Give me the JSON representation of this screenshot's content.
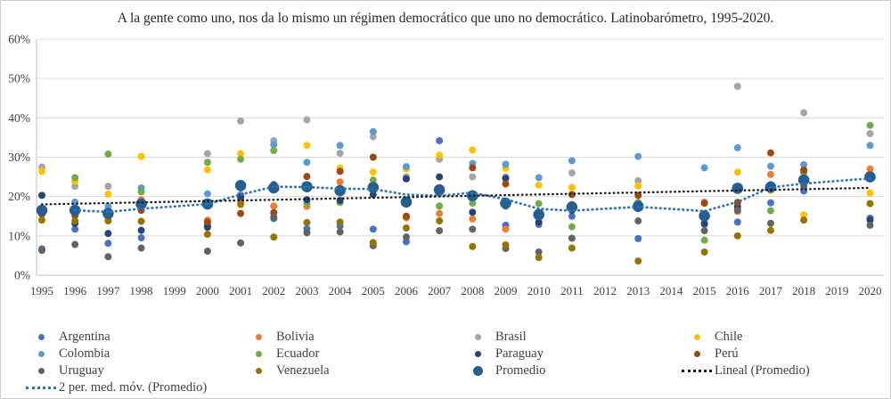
{
  "chart_data": {
    "type": "scatter",
    "title": "A la gente como uno, nos da lo mismo un régimen democrático que uno no democrático. Latinobarómetro, 1995-2020.",
    "x_years": [
      1995,
      1996,
      1997,
      1998,
      1999,
      2000,
      2001,
      2002,
      2003,
      2004,
      2005,
      2006,
      2007,
      2008,
      2009,
      2010,
      2011,
      2012,
      2013,
      2014,
      2015,
      2016,
      2017,
      2018,
      2019,
      2020
    ],
    "ylim": [
      0,
      60
    ],
    "ytick_step": 10,
    "ytick_labels": [
      "0%",
      "10%",
      "20%",
      "30%",
      "40%",
      "50%",
      "60%"
    ],
    "grid": true,
    "legend_position": "bottom",
    "axis_color": "#BFBFBF",
    "grid_color": "#D9D9D9",
    "tick_label_color": "#404040",
    "series": [
      {
        "name": "Argentina",
        "color": "#4472C4",
        "marker_radius": 4,
        "points": {
          "1995": 6.7,
          "1996": 11.7,
          "1997": 8.1,
          "1998": 9.5,
          "2000": 12.6,
          "2001": 19.5,
          "2002": 14.4,
          "2003": 11.8,
          "2004": 12.5,
          "2005": 11.7,
          "2006": 8.5,
          "2007": 34.2,
          "2008": 20.5,
          "2009": 12.7,
          "2010": 12.9,
          "2011": 15.0,
          "2013": 9.3,
          "2015": 12.9,
          "2016": 13.5,
          "2017": 18.4,
          "2018": 21.4,
          "2020": 14.5
        }
      },
      {
        "name": "Bolivia",
        "color": "#ED7D31",
        "marker_radius": 4,
        "points": {
          "1996": 15.7,
          "1997": 14.6,
          "1998": 19.2,
          "2000": 14.0,
          "2001": 18.4,
          "2002": 17.6,
          "2003": 17.5,
          "2004": 23.7,
          "2005": 22.0,
          "2006": 14.6,
          "2007": 15.7,
          "2008": 14.3,
          "2009": 11.7,
          "2010": 15.0,
          "2011": 18.0,
          "2013": 17.5,
          "2015": 15.0,
          "2016": 16.2,
          "2017": 25.6,
          "2018": 26.8,
          "2020": 27.0
        }
      },
      {
        "name": "Brasil",
        "color": "#A5A5A5",
        "marker_radius": 4,
        "points": {
          "1995": 27.5,
          "1996": 22.6,
          "1997": 22.6,
          "1998": 18.5,
          "2000": 30.9,
          "2001": 39.2,
          "2002": 34.2,
          "2003": 39.5,
          "2004": 31.0,
          "2005": 35.2,
          "2006": 25.0,
          "2007": 29.5,
          "2008": 25.0,
          "2009": 25.0,
          "2010": 16.0,
          "2011": 26.0,
          "2013": 24.0,
          "2015": 18.6,
          "2016": 48.0,
          "2017": 22.0,
          "2018": 41.3,
          "2020": 36.0
        }
      },
      {
        "name": "Chile",
        "color": "#FFC000",
        "marker_radius": 4,
        "points": {
          "1995": 26.4,
          "1996": 23.9,
          "1997": 20.6,
          "1998": 30.2,
          "2000": 26.8,
          "2001": 30.9,
          "2002": 22.0,
          "2003": 33.0,
          "2004": 27.2,
          "2005": 26.2,
          "2006": 27.0,
          "2007": 30.5,
          "2008": 31.8,
          "2009": 27.2,
          "2010": 22.9,
          "2011": 22.3,
          "2013": 22.7,
          "2015": 15.5,
          "2016": 26.2,
          "2017": 21.5,
          "2018": 15.3,
          "2020": 20.9
        }
      },
      {
        "name": "Colombia",
        "color": "#5B9BD5",
        "marker_radius": 4,
        "points": {
          "1996": 18.6,
          "1997": 17.5,
          "1998": 22.2,
          "2000": 20.7,
          "2001": 20.5,
          "2002": 33.2,
          "2003": 28.7,
          "2004": 33.0,
          "2005": 36.5,
          "2006": 27.6,
          "2007": 22.0,
          "2008": 28.4,
          "2009": 28.2,
          "2010": 24.8,
          "2011": 29.1,
          "2013": 30.2,
          "2015": 27.3,
          "2016": 32.4,
          "2017": 27.7,
          "2018": 28.1,
          "2020": 33.0
        }
      },
      {
        "name": "Ecuador",
        "color": "#70AD47",
        "marker_radius": 4,
        "points": {
          "1996": 24.8,
          "1997": 30.8,
          "1998": 21.2,
          "2000": 28.7,
          "2001": 29.5,
          "2002": 31.7,
          "2003": 18.3,
          "2004": 18.5,
          "2005": 24.2,
          "2006": 19.0,
          "2007": 17.6,
          "2008": 18.3,
          "2009": 17.5,
          "2010": 18.2,
          "2011": 12.3,
          "2013": 18.5,
          "2015": 8.9,
          "2016": 16.8,
          "2017": 16.4,
          "2018": 26.0,
          "2020": 38.1
        }
      },
      {
        "name": "Paraguay",
        "color": "#264478",
        "marker_radius": 4,
        "points": {
          "1995": 20.3,
          "1996": 13.2,
          "1997": 10.6,
          "1998": 11.4,
          "2000": 12.2,
          "2001": 20.0,
          "2002": 23.0,
          "2003": 19.2,
          "2004": 19.0,
          "2005": 20.5,
          "2006": 24.5,
          "2007": 25.0,
          "2008": 16.0,
          "2009": 24.6,
          "2010": 13.5,
          "2011": 16.5,
          "2013": 18.0,
          "2015": 13.2,
          "2016": 17.5,
          "2017": 23.0,
          "2018": 24.5,
          "2020": 14.0
        }
      },
      {
        "name": "Perú",
        "color": "#9E480E",
        "marker_radius": 4,
        "points": {
          "1995": 15.5,
          "1996": 15.2,
          "1997": 15.0,
          "1998": 16.5,
          "2000": 13.5,
          "2001": 15.7,
          "2002": 15.9,
          "2003": 25.1,
          "2004": 26.4,
          "2005": 30.0,
          "2006": 15.0,
          "2007": 21.0,
          "2008": 27.3,
          "2009": 23.2,
          "2010": 15.5,
          "2011": 20.5,
          "2013": 20.3,
          "2015": 18.3,
          "2016": 18.5,
          "2017": 31.1,
          "2018": 26.7,
          "2020": 25.0
        }
      },
      {
        "name": "Uruguay",
        "color": "#636363",
        "marker_radius": 4,
        "points": {
          "1995": 6.3,
          "1996": 7.8,
          "1997": 4.7,
          "1998": 6.9,
          "2000": 6.1,
          "2001": 8.2,
          "2002": 14.8,
          "2003": 10.8,
          "2004": 11.0,
          "2005": 7.5,
          "2006": 9.7,
          "2007": 11.3,
          "2008": 11.7,
          "2009": 6.8,
          "2010": 5.9,
          "2011": 9.4,
          "2013": 13.8,
          "2015": 11.3,
          "2016": 16.5,
          "2017": 13.2,
          "2018": 22.7,
          "2020": 12.7
        }
      },
      {
        "name": "Venezuela",
        "color": "#997300",
        "marker_radius": 4,
        "points": {
          "1995": 14.0,
          "1996": 13.8,
          "1997": 13.8,
          "1998": 13.7,
          "2000": 10.4,
          "2001": 18.0,
          "2002": 9.7,
          "2003": 13.4,
          "2004": 13.5,
          "2005": 8.3,
          "2006": 12.0,
          "2007": 13.8,
          "2008": 7.3,
          "2009": 7.7,
          "2010": 4.5,
          "2011": 6.9,
          "2013": 3.6,
          "2015": 5.9,
          "2016": 10.0,
          "2017": 11.4,
          "2018": 14.0,
          "2020": 18.2
        }
      },
      {
        "name": "Promedio",
        "color": "#255E91",
        "marker_radius": 6.3,
        "points": {
          "1995": 16.5,
          "1996": 16.5,
          "1997": 15.7,
          "1998": 18.1,
          "2000": 18.1,
          "2001": 22.8,
          "2002": 22.2,
          "2003": 22.5,
          "2004": 21.5,
          "2005": 22.3,
          "2006": 18.6,
          "2007": 21.7,
          "2008": 20.2,
          "2009": 18.3,
          "2010": 15.4,
          "2011": 17.3,
          "2013": 17.5,
          "2015": 15.1,
          "2016": 22.1,
          "2017": 22.4,
          "2018": 24.2,
          "2020": 25.0
        }
      }
    ],
    "moving_average": {
      "name": "2 per. med. móv. (Promedio)",
      "color": "#2E75B6",
      "points": {
        "1996": 16.5,
        "1997": 16.1,
        "1998": 16.9,
        "2000": 18.1,
        "2001": 20.5,
        "2002": 22.5,
        "2003": 22.4,
        "2004": 22.0,
        "2005": 21.9,
        "2006": 20.5,
        "2007": 20.2,
        "2008": 21.0,
        "2009": 19.3,
        "2010": 16.9,
        "2011": 16.4,
        "2013": 17.4,
        "2015": 16.3,
        "2016": 18.6,
        "2017": 22.3,
        "2018": 23.3,
        "2020": 24.6
      }
    },
    "trendline": {
      "name": "Lineal (Promedio)",
      "color": "#1A1A1A",
      "points": {
        "1995": 18.0,
        "2020": 22.2
      }
    },
    "legend_rows": [
      [
        "Argentina",
        "Bolivia",
        "Brasil",
        "Chile"
      ],
      [
        "Colombia",
        "Ecuador",
        "Paraguay",
        "Perú"
      ],
      [
        "Uruguay",
        "Venezuela",
        "Promedio",
        "Lineal (Promedio)"
      ],
      [
        "2 per. med. móv. (Promedio)"
      ]
    ]
  }
}
